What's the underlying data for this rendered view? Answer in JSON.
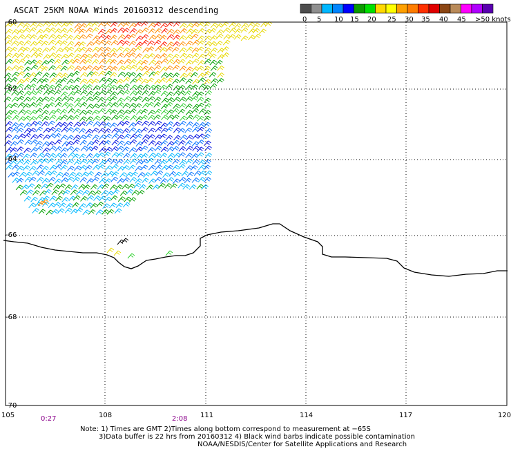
{
  "title": "ASCAT 25KM NOAA Winds 20160312 descending",
  "legend": {
    "bins": [
      {
        "color": "#4d4d4d"
      },
      {
        "color": "#8f8f8f"
      },
      {
        "color": "#00b7ff"
      },
      {
        "color": "#0085ff"
      },
      {
        "color": "#0000ff"
      },
      {
        "color": "#0c9b00"
      },
      {
        "color": "#00e000"
      },
      {
        "color": "#ffd800"
      },
      {
        "color": "#ffff00"
      },
      {
        "color": "#ffa000"
      },
      {
        "color": "#ff7d00"
      },
      {
        "color": "#ff3000"
      },
      {
        "color": "#e00000"
      },
      {
        "color": "#8b4513"
      },
      {
        "color": "#b98b5a"
      },
      {
        "color": "#ff00ff"
      },
      {
        "color": "#b000ff"
      },
      {
        "color": "#5a00b0"
      }
    ],
    "labels": [
      "0",
      "5",
      "10",
      "15",
      "20",
      "25",
      "30",
      "35",
      "40",
      "45",
      ">50 knots"
    ]
  },
  "lat_labels": [
    "-60",
    "-62",
    "-64",
    "-66",
    "-68",
    "-70"
  ],
  "lon_labels": [
    "105",
    "108",
    "111",
    "114",
    "117",
    "120"
  ],
  "time_labels": [
    "0:27",
    "2:08"
  ],
  "notes": [
    "Note: 1) Times are GMT 2)Times along bottom correspond to measurement at −65S",
    "3)Data buffer is 22 hrs from 20160312 4) Black wind barbs indicate possible contamination",
    "NOAA/NESDIS/Center for Satellite Applications and Research"
  ]
}
